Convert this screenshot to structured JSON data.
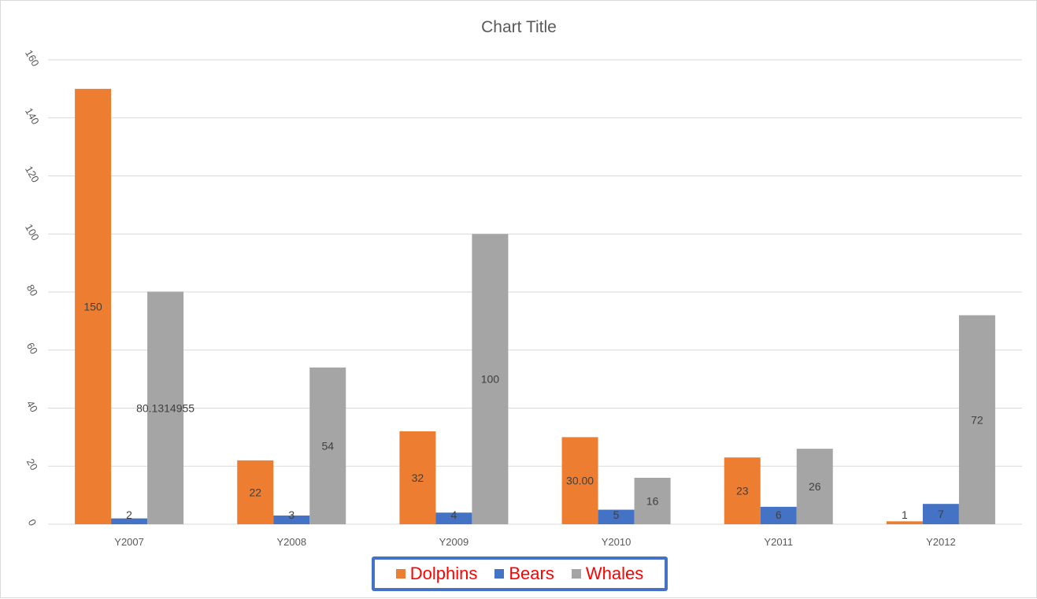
{
  "chart_data": {
    "type": "bar",
    "title": "Chart Title",
    "categories": [
      "Y2007",
      "Y2008",
      "Y2009",
      "Y2010",
      "Y2011",
      "Y2012"
    ],
    "series": [
      {
        "name": "Dolphins",
        "color": "#ed7d31",
        "values": [
          150,
          22,
          32,
          30,
          23,
          1
        ],
        "labels": [
          "150",
          "22",
          "32",
          "30.00",
          "23",
          "1"
        ]
      },
      {
        "name": "Bears",
        "color": "#4472c4",
        "values": [
          2,
          3,
          4,
          5,
          6,
          7
        ],
        "labels": [
          "2",
          "3",
          "4",
          "5",
          "6",
          "7"
        ]
      },
      {
        "name": "Whales",
        "color": "#a5a5a5",
        "values": [
          80.1314955,
          54,
          100,
          16,
          26,
          72
        ],
        "labels": [
          "80.1314955",
          "54",
          "100",
          "16",
          "26",
          "72"
        ]
      }
    ],
    "ylim": [
      0,
      160
    ],
    "yticks": [
      0,
      20,
      40,
      60,
      80,
      100,
      120,
      140,
      160
    ],
    "grid": true,
    "legend_position": "bottom",
    "legend_text_color": "#ff0000",
    "legend_border_color": "#4472c4"
  }
}
